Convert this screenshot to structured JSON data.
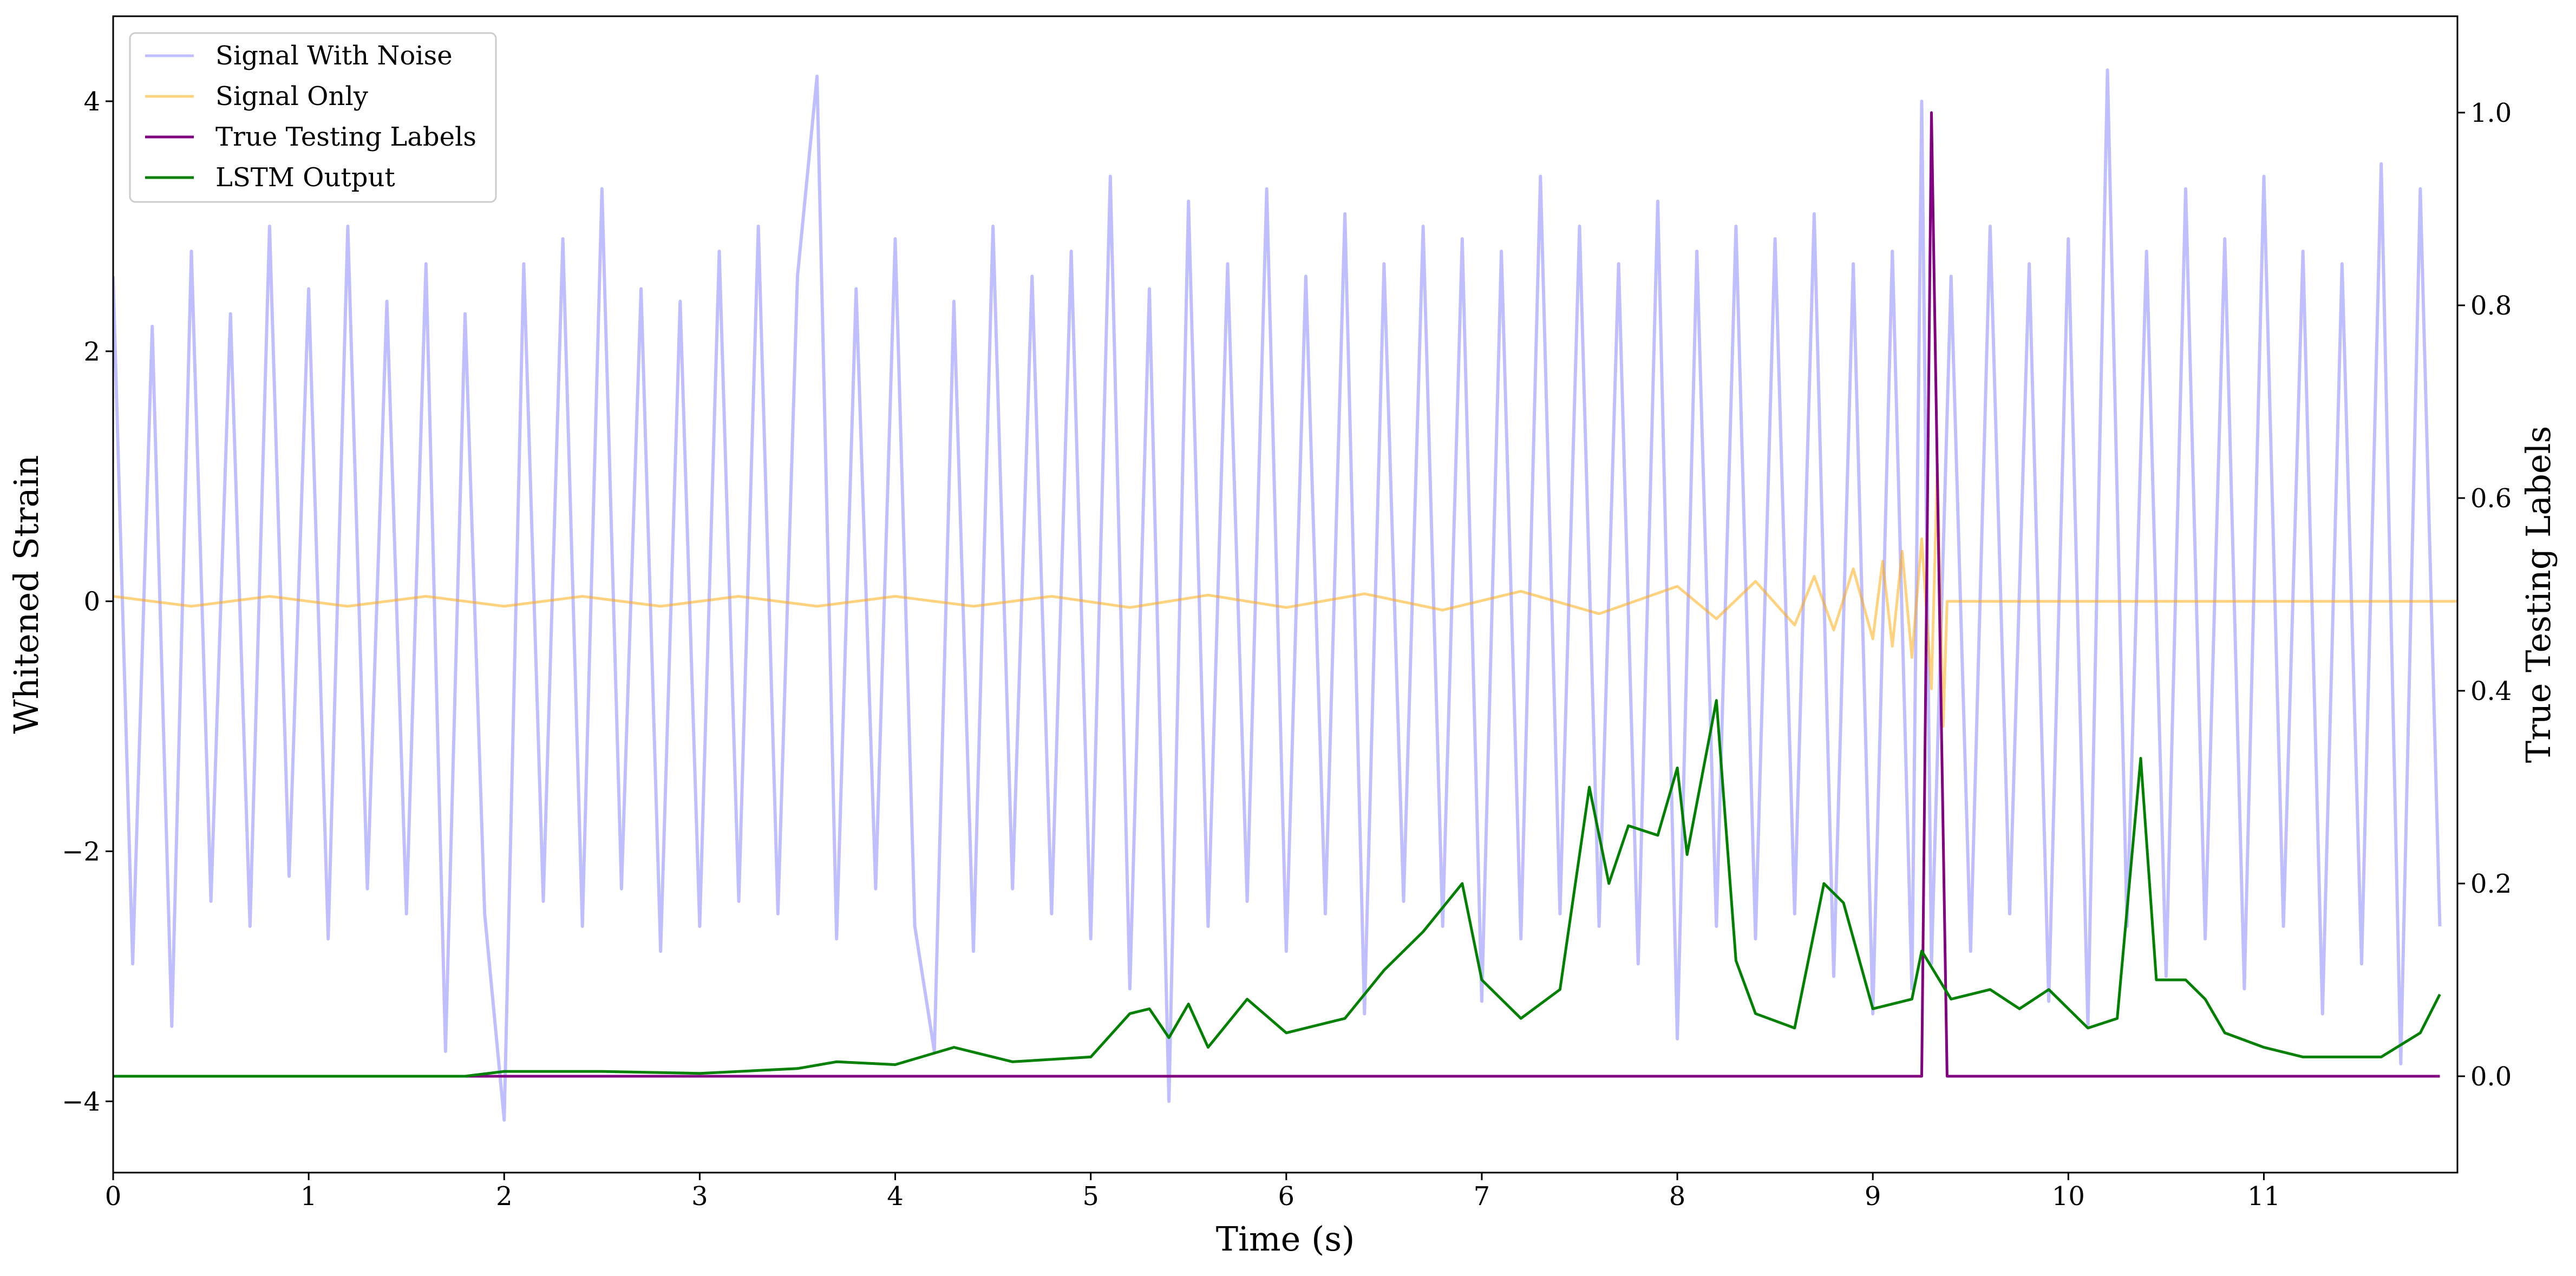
{
  "chart_data": {
    "type": "line",
    "xlabel": "Time (s)",
    "ylabel": "Whitened Strain",
    "y2label": "True Testing Labels",
    "xlim": [
      0,
      11.99
    ],
    "ylim": [
      -4.57,
      4.68
    ],
    "y2lim": [
      -0.1,
      1.1
    ],
    "xticks": [
      0,
      1,
      2,
      3,
      4,
      5,
      6,
      7,
      8,
      9,
      10,
      11
    ],
    "yticks": [
      {
        "value": -4,
        "label": "−4"
      },
      {
        "value": -2,
        "label": "−2"
      },
      0,
      2,
      4
    ],
    "y2ticks": [
      {
        "value": 0,
        "label": "0.0"
      },
      0.2,
      0.4,
      0.6,
      0.8,
      {
        "value": 1,
        "label": "1.0"
      }
    ],
    "legend": "upper left",
    "series": [
      {
        "name": "Signal With Noise",
        "color": "#8080ff",
        "x": [
          0,
          0.1,
          0.2,
          0.3,
          0.4,
          0.5,
          0.6,
          0.7,
          0.8,
          0.9,
          1,
          1.1,
          1.2,
          1.3,
          1.4,
          1.5,
          1.6,
          1.7,
          1.8,
          1.9,
          2,
          2.1,
          2.2,
          2.3,
          2.4,
          2.5,
          2.6,
          2.7,
          2.8,
          2.9,
          3,
          3.1,
          3.2,
          3.3,
          3.4,
          3.5,
          3.6,
          3.7,
          3.8,
          3.9,
          4,
          4.1,
          4.2,
          4.3,
          4.4,
          4.5,
          4.6,
          4.7,
          4.8,
          4.9,
          5,
          5.1,
          5.2,
          5.3,
          5.4,
          5.5,
          5.6,
          5.7,
          5.8,
          5.9,
          6,
          6.1,
          6.2,
          6.3,
          6.4,
          6.5,
          6.6,
          6.7,
          6.8,
          6.9,
          7,
          7.1,
          7.2,
          7.3,
          7.4,
          7.5,
          7.6,
          7.7,
          7.8,
          7.9,
          8,
          8.1,
          8.2,
          8.3,
          8.4,
          8.5,
          8.6,
          8.7,
          8.8,
          8.9,
          9,
          9.1,
          9.2,
          9.25,
          9.3,
          9.4,
          9.5,
          9.6,
          9.7,
          9.8,
          9.9,
          10,
          10.1,
          10.2,
          10.3,
          10.4,
          10.5,
          10.6,
          10.7,
          10.8,
          10.9,
          11,
          11.1,
          11.2,
          11.3,
          11.4,
          11.5,
          11.6,
          11.7,
          11.8,
          11.9
        ],
        "values": [
          2.6,
          -2.9,
          2.2,
          -3.4,
          2.8,
          -2.4,
          2.3,
          -2.6,
          3.0,
          -2.2,
          2.5,
          -2.7,
          3.0,
          -2.3,
          2.4,
          -2.5,
          2.7,
          -3.6,
          2.3,
          -2.5,
          -4.15,
          2.7,
          -2.4,
          2.9,
          -2.6,
          3.3,
          -2.3,
          2.5,
          -2.8,
          2.4,
          -2.6,
          2.8,
          -2.4,
          3.0,
          -2.5,
          2.6,
          4.2,
          -2.7,
          2.5,
          -2.3,
          2.9,
          -2.6,
          -3.6,
          2.4,
          -2.8,
          3.0,
          -2.3,
          2.6,
          -2.5,
          2.8,
          -2.7,
          3.4,
          -3.1,
          2.5,
          -4.0,
          3.2,
          -2.6,
          2.7,
          -2.4,
          3.3,
          -2.8,
          2.6,
          -2.5,
          3.1,
          -3.3,
          2.7,
          -2.4,
          3.0,
          -2.6,
          2.9,
          -3.2,
          2.8,
          -2.7,
          3.4,
          -2.5,
          3.0,
          -2.6,
          2.7,
          -2.9,
          3.2,
          -3.5,
          2.8,
          -2.6,
          3.0,
          -2.7,
          2.9,
          -2.5,
          3.1,
          -3.0,
          2.7,
          -3.3,
          2.8,
          -3.1,
          4.0,
          -2.9,
          2.6,
          -2.8,
          3.0,
          -2.5,
          2.7,
          -3.2,
          2.9,
          -3.4,
          4.25,
          -2.6,
          2.8,
          -3.0,
          3.3,
          -2.7,
          2.9,
          -3.1,
          3.4,
          -2.6,
          2.8,
          -3.3,
          2.7,
          -2.9,
          3.5,
          -3.7,
          3.3,
          -2.6
        ],
        "opacity": 1
      },
      {
        "name": "Signal Only",
        "color": "#ffa500",
        "x": [
          0,
          0.4,
          0.8,
          1.2,
          1.6,
          2,
          2.4,
          2.8,
          3.2,
          3.6,
          4,
          4.4,
          4.8,
          5.2,
          5.6,
          6,
          6.4,
          6.8,
          7.2,
          7.6,
          8,
          8.2,
          8.4,
          8.6,
          8.7,
          8.8,
          8.9,
          9,
          9.05,
          9.1,
          9.15,
          9.2,
          9.25,
          9.3,
          9.33,
          9.36,
          9.38,
          10,
          11,
          11.99
        ],
        "values": [
          0.04,
          -0.04,
          0.04,
          -0.04,
          0.04,
          -0.04,
          0.04,
          -0.04,
          0.04,
          -0.04,
          0.04,
          -0.04,
          0.04,
          -0.05,
          0.05,
          -0.05,
          0.06,
          -0.07,
          0.08,
          -0.1,
          0.12,
          -0.14,
          0.16,
          -0.19,
          0.2,
          -0.23,
          0.26,
          -0.3,
          0.32,
          -0.36,
          0.4,
          -0.45,
          0.5,
          -0.7,
          1.1,
          -1.0,
          0,
          0,
          0,
          0
        ]
      },
      {
        "name": "True Testing Labels",
        "color": "#800080",
        "axis": "y2",
        "x": [
          0,
          9.25,
          9.3,
          9.38,
          11.9
        ],
        "values": [
          0,
          0,
          1,
          0,
          0
        ]
      },
      {
        "name": "LSTM Output",
        "color": "#008000",
        "axis": "y2",
        "x": [
          0,
          1,
          1.8,
          2,
          2.5,
          3,
          3.5,
          3.7,
          4,
          4.3,
          4.6,
          5,
          5.2,
          5.3,
          5.4,
          5.5,
          5.6,
          5.8,
          6,
          6.3,
          6.5,
          6.7,
          6.9,
          7,
          7.2,
          7.3,
          7.4,
          7.55,
          7.65,
          7.75,
          7.9,
          8,
          8.05,
          8.2,
          8.3,
          8.4,
          8.6,
          8.75,
          8.85,
          9,
          9.2,
          9.25,
          9.4,
          9.6,
          9.75,
          9.9,
          10.1,
          10.25,
          10.37,
          10.45,
          10.6,
          10.7,
          10.8,
          11,
          11.2,
          11.4,
          11.6,
          11.8,
          11.9
        ],
        "values": [
          0,
          0,
          0,
          0.005,
          0.005,
          0.003,
          0.008,
          0.015,
          0.012,
          0.03,
          0.015,
          0.02,
          0.065,
          0.07,
          0.04,
          0.075,
          0.03,
          0.08,
          0.045,
          0.06,
          0.11,
          0.15,
          0.2,
          0.1,
          0.06,
          0.075,
          0.09,
          0.3,
          0.2,
          0.26,
          0.25,
          0.32,
          0.23,
          0.39,
          0.12,
          0.065,
          0.05,
          0.2,
          0.18,
          0.07,
          0.08,
          0.13,
          0.08,
          0.09,
          0.07,
          0.09,
          0.05,
          0.06,
          0.33,
          0.1,
          0.1,
          0.08,
          0.045,
          0.03,
          0.02,
          0.02,
          0.02,
          0.045,
          0.085
        ]
      }
    ]
  }
}
